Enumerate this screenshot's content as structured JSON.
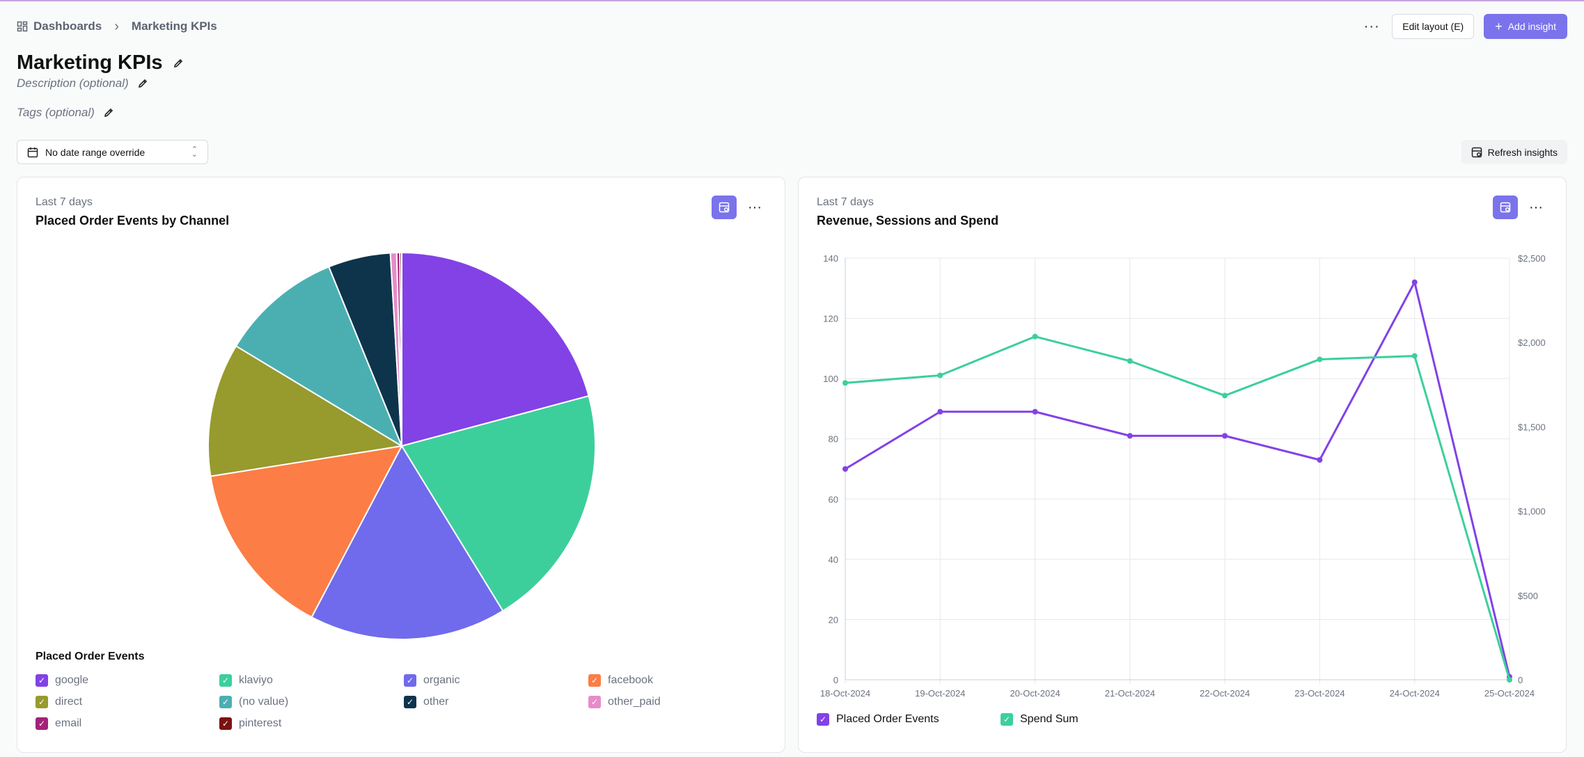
{
  "breadcrumb": {
    "root": "Dashboards",
    "current": "Marketing KPIs"
  },
  "toolbar": {
    "more_label": "···",
    "edit_layout": "Edit layout (E)",
    "add_insight": "Add insight"
  },
  "dashboard": {
    "title": "Marketing KPIs",
    "description_placeholder": "Description (optional)",
    "tags_placeholder": "Tags (optional)"
  },
  "filters": {
    "date_range": "No date range override",
    "refresh": "Refresh insights"
  },
  "colors": {
    "accent": "#7a73eb",
    "purple": "#8242e6",
    "green": "#3ccf9c"
  },
  "pie_card": {
    "subtitle": "Last 7 days",
    "title": "Placed Order Events by Channel",
    "legend_title": "Placed Order Events",
    "chart_data": {
      "type": "pie",
      "slices": [
        {
          "label": "google",
          "value": 20.0,
          "color": "#8242e6"
        },
        {
          "label": "klaviyo",
          "value": 19.6,
          "color": "#3ccf9c"
        },
        {
          "label": "organic",
          "value": 15.8,
          "color": "#6f6bec"
        },
        {
          "label": "facebook",
          "value": 14.2,
          "color": "#fc7d45"
        },
        {
          "label": "direct",
          "value": 10.7,
          "color": "#979a2d"
        },
        {
          "label": "(no value)",
          "value": 9.8,
          "color": "#4bafb2"
        },
        {
          "label": "other",
          "value": 5.0,
          "color": "#0e344c"
        },
        {
          "label": "other_paid",
          "value": 0.5,
          "color": "#e88bc9"
        },
        {
          "label": "email",
          "value": 0.25,
          "color": "#a3217a"
        },
        {
          "label": "pinterest",
          "value": 0.15,
          "color": "#7b1212"
        }
      ]
    }
  },
  "line_card": {
    "subtitle": "Last 7 days",
    "title": "Revenue, Sessions and Spend",
    "chart_data": {
      "type": "line",
      "x": [
        "18-Oct-2024",
        "19-Oct-2024",
        "20-Oct-2024",
        "21-Oct-2024",
        "22-Oct-2024",
        "23-Oct-2024",
        "24-Oct-2024",
        "25-Oct-2024"
      ],
      "y_left": {
        "ticks": [
          "0",
          "20",
          "40",
          "60",
          "80",
          "100",
          "120",
          "140"
        ],
        "range": [
          0,
          140
        ]
      },
      "y_right": {
        "ticks": [
          "0",
          "$500",
          "$1,000",
          "$1,500",
          "$2,000",
          "$2,500"
        ],
        "range": [
          0,
          2500
        ]
      },
      "grid": true,
      "legend_placement": "bottom-left",
      "series": [
        {
          "name": "Placed Order Events",
          "axis": "left",
          "color": "#8242e6",
          "values": [
            70,
            89,
            89,
            81,
            81,
            73,
            132,
            1
          ]
        },
        {
          "name": "Spend Sum",
          "axis": "right",
          "color": "#3ccf9c",
          "values": [
            1760,
            1805,
            2035,
            1890,
            1685,
            1900,
            1920,
            0
          ]
        }
      ]
    }
  }
}
